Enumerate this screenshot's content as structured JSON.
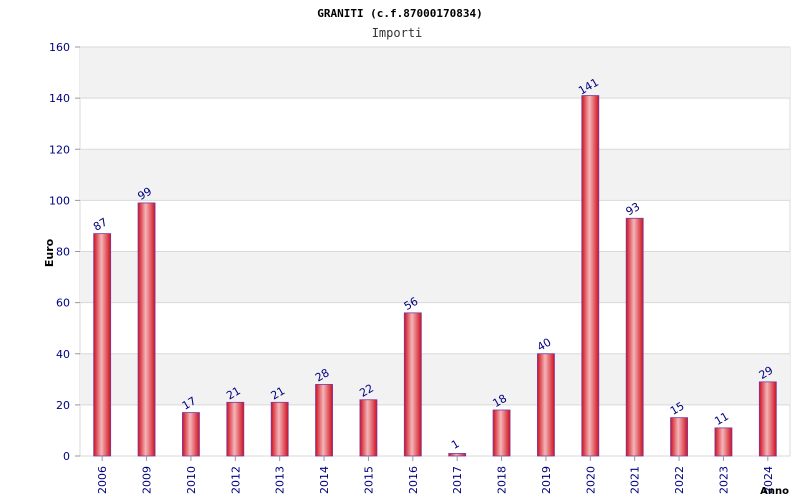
{
  "chart_data": {
    "type": "bar",
    "title": "GRANITI (c.f.87000170834)",
    "subtitle": "Importi",
    "ylabel": "Euro",
    "xlabel": "Anno",
    "ylim": [
      0,
      160
    ],
    "yticks": [
      0,
      20,
      40,
      60,
      80,
      100,
      120,
      140,
      160
    ],
    "categories": [
      "2006",
      "2009",
      "2010",
      "2012",
      "2013",
      "2014",
      "2015",
      "2016",
      "2017",
      "2018",
      "2019",
      "2020",
      "2021",
      "2022",
      "2023",
      "2024"
    ],
    "values": [
      87,
      99,
      17,
      21,
      21,
      28,
      22,
      56,
      1,
      18,
      40,
      141,
      93,
      15,
      11,
      29
    ],
    "value_labels": [
      "87",
      "99",
      "17",
      "21",
      "21",
      "28",
      "22",
      "56",
      "1",
      "18",
      "40",
      "141",
      "93",
      "15",
      "11",
      "29"
    ],
    "grid": true,
    "legend": "none",
    "colors": {
      "bar_edge": "#d0101e",
      "bar_center": "#f4b6b9",
      "bar_outline": "#7a3aa0",
      "band": "#f2f2f2",
      "grid": "#d9d9d9",
      "axis_text": "#000080"
    }
  }
}
